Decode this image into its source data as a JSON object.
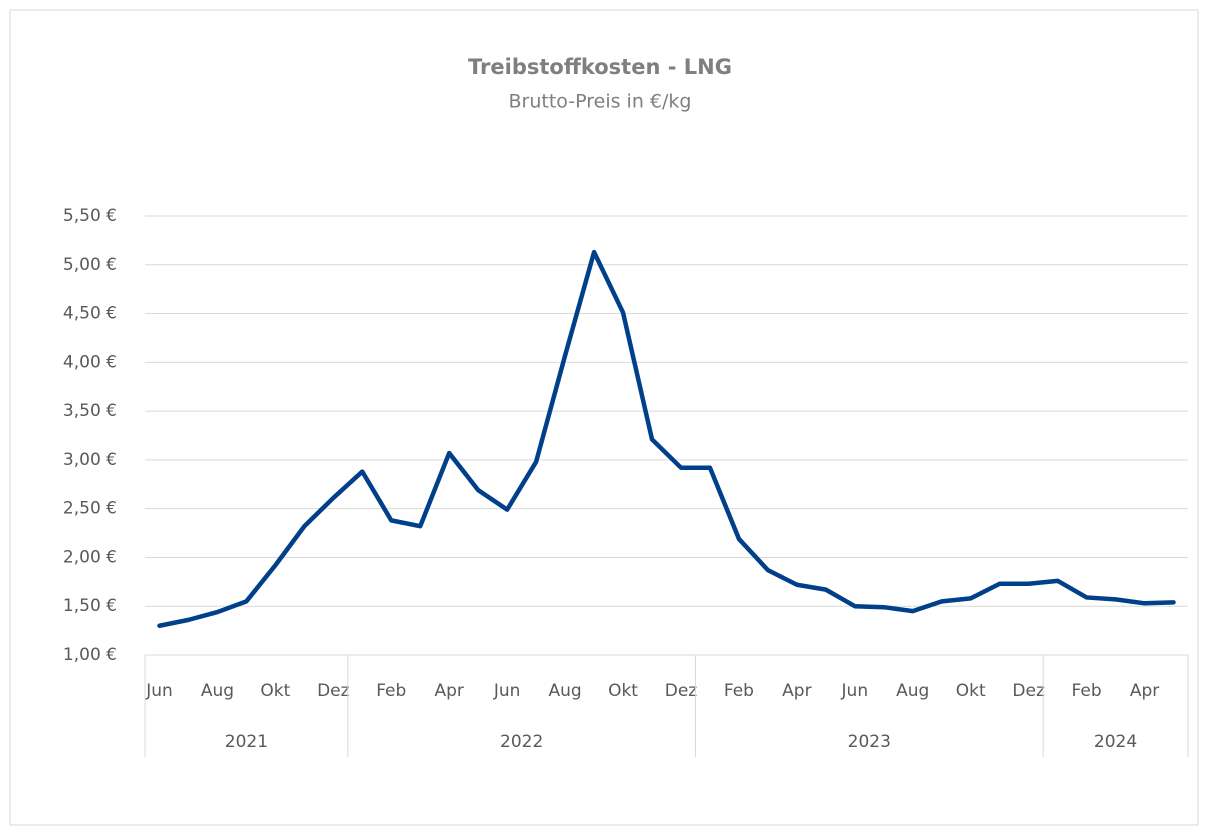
{
  "chart_data": {
    "type": "line",
    "title": "Treibstoffkosten - LNG",
    "subtitle": "Brutto-Preis in €/kg",
    "categories": [
      "Jun",
      null,
      "Aug",
      null,
      "Okt",
      null,
      "Dez",
      null,
      "Feb",
      null,
      "Apr",
      null,
      "Jun",
      null,
      "Aug",
      null,
      "Okt",
      null,
      "Dez",
      null,
      "Feb",
      null,
      "Apr",
      null,
      "Jun",
      null,
      "Aug",
      null,
      "Okt",
      null,
      "Dez",
      null,
      "Feb",
      null,
      "Apr",
      null
    ],
    "category_groups": [
      {
        "label": "2021",
        "span": 7
      },
      {
        "label": "2022",
        "span": 12
      },
      {
        "label": "2023",
        "span": 12
      },
      {
        "label": "2024",
        "span": 5
      }
    ],
    "series": [
      {
        "name": "LNG",
        "color": "#003f8a",
        "values": [
          1.3,
          1.36,
          1.44,
          1.55,
          1.92,
          2.32,
          2.61,
          2.88,
          2.38,
          2.32,
          3.07,
          2.69,
          2.49,
          2.98,
          4.07,
          5.13,
          4.51,
          3.21,
          2.92,
          2.92,
          2.19,
          1.87,
          1.72,
          1.67,
          1.5,
          1.49,
          1.45,
          1.55,
          1.58,
          1.73,
          1.73,
          1.76,
          1.59,
          1.57,
          1.53,
          1.54
        ]
      }
    ],
    "ylim": [
      1,
      5.5
    ],
    "yticks": [
      {
        "value": 1,
        "label": "1,00 €"
      },
      {
        "value": 1.5,
        "label": "1,50 €"
      },
      {
        "value": 2,
        "label": "2,00 €"
      },
      {
        "value": 2.5,
        "label": "2,50 €"
      },
      {
        "value": 3,
        "label": "3,00 €"
      },
      {
        "value": 3.5,
        "label": "3,50 €"
      },
      {
        "value": 4,
        "label": "4,00 €"
      },
      {
        "value": 4.5,
        "label": "4,50 €"
      },
      {
        "value": 5,
        "label": "5,00 €"
      },
      {
        "value": 5.5,
        "label": "5,50 €"
      }
    ],
    "grid": true
  }
}
